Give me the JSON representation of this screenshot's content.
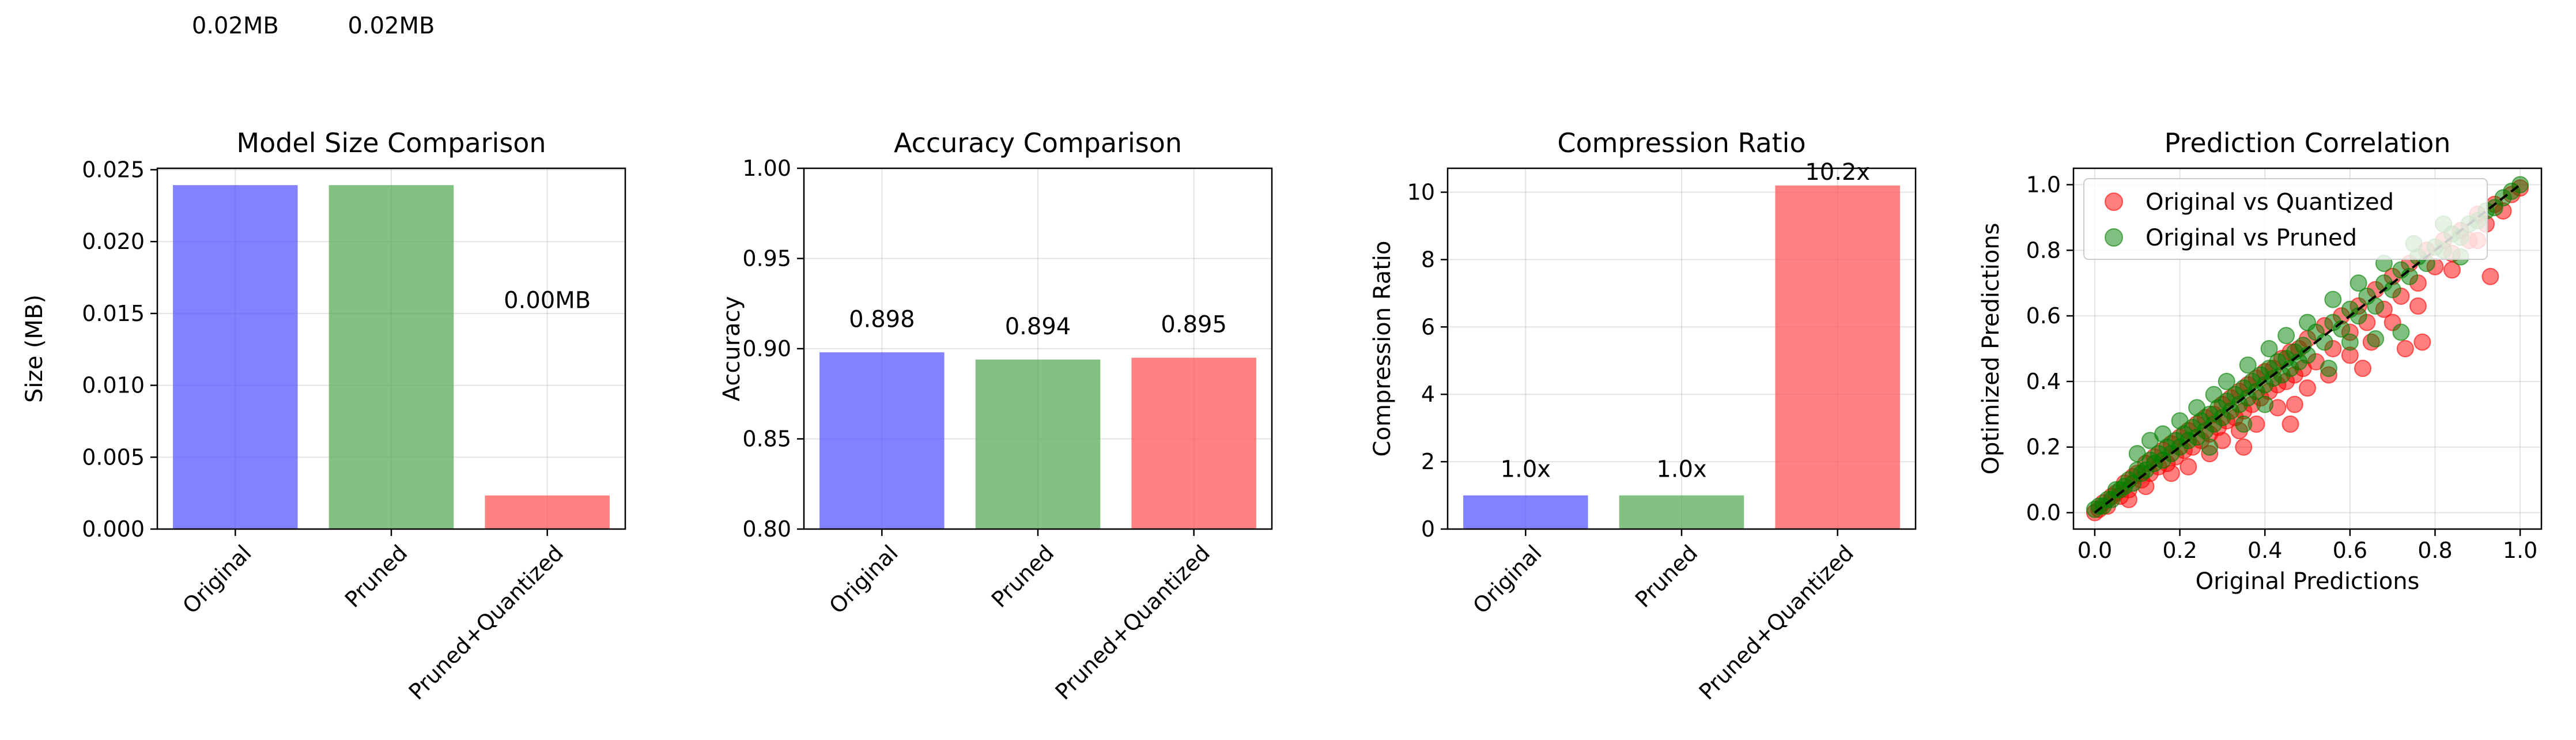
{
  "chart_data": [
    {
      "type": "bar",
      "title": "Model Size Comparison",
      "xlabel": "",
      "ylabel": "Size (MB)",
      "categories": [
        "Original",
        "Pruned",
        "Pruned+Quantized"
      ],
      "values": [
        0.02393,
        0.02393,
        0.00234
      ],
      "data_labels": [
        "0.02MB",
        "0.02MB",
        "0.00MB"
      ],
      "colors": [
        "#4d4dff",
        "#4da64d",
        "#ff4d4d"
      ],
      "ylim": [
        0,
        0.0251
      ],
      "yticks": [
        0.0,
        0.005,
        0.01,
        0.015,
        0.02,
        0.025
      ],
      "ytick_labels": [
        "0.000",
        "0.005",
        "0.010",
        "0.015",
        "0.020",
        "0.025"
      ],
      "grid": true
    },
    {
      "type": "bar",
      "title": "Accuracy Comparison",
      "xlabel": "",
      "ylabel": "Accuracy",
      "categories": [
        "Original",
        "Pruned",
        "Pruned+Quantized"
      ],
      "values": [
        0.898,
        0.894,
        0.895
      ],
      "data_labels": [
        "0.898",
        "0.894",
        "0.895"
      ],
      "colors": [
        "#4d4dff",
        "#4da64d",
        "#ff4d4d"
      ],
      "ylim": [
        0.8,
        1.0
      ],
      "yticks": [
        0.8,
        0.85,
        0.9,
        0.95,
        1.0
      ],
      "ytick_labels": [
        "0.80",
        "0.85",
        "0.90",
        "0.95",
        "1.00"
      ],
      "grid": true
    },
    {
      "type": "bar",
      "title": "Compression Ratio",
      "xlabel": "",
      "ylabel": "Compression Ratio",
      "categories": [
        "Original",
        "Pruned",
        "Pruned+Quantized"
      ],
      "values": [
        1.0,
        1.0,
        10.2
      ],
      "data_labels": [
        "1.0x",
        "1.0x",
        "10.2x"
      ],
      "colors": [
        "#4d4dff",
        "#4da64d",
        "#ff4d4d"
      ],
      "ylim": [
        0,
        10.71
      ],
      "yticks": [
        0,
        2,
        4,
        6,
        8,
        10
      ],
      "ytick_labels": [
        "0",
        "2",
        "4",
        "6",
        "8",
        "10"
      ],
      "grid": true
    },
    {
      "type": "scatter",
      "title": "Prediction Correlation",
      "xlabel": "Original Predictions",
      "ylabel": "Optimized Predictions",
      "xlim": [
        -0.05,
        1.05
      ],
      "ylim": [
        -0.05,
        1.05
      ],
      "xticks": [
        0.0,
        0.2,
        0.4,
        0.6,
        0.8,
        1.0
      ],
      "xtick_labels": [
        "0.0",
        "0.2",
        "0.4",
        "0.6",
        "0.8",
        "1.0"
      ],
      "yticks": [
        0.0,
        0.2,
        0.4,
        0.6,
        0.8,
        1.0
      ],
      "ytick_labels": [
        "0.0",
        "0.2",
        "0.4",
        "0.6",
        "0.8",
        "1.0"
      ],
      "grid": true,
      "legend_position": "upper-left",
      "reference_line": {
        "x": [
          0,
          1
        ],
        "y": [
          0,
          1
        ],
        "style": "dashed",
        "color": "#000000"
      },
      "series": [
        {
          "name": "Original vs Quantized",
          "color": "#ff0000",
          "points": [
            [
              0.0,
              0.0
            ],
            [
              0.01,
              0.01
            ],
            [
              0.02,
              0.03
            ],
            [
              0.03,
              0.02
            ],
            [
              0.04,
              0.05
            ],
            [
              0.05,
              0.06
            ],
            [
              0.06,
              0.05
            ],
            [
              0.07,
              0.09
            ],
            [
              0.08,
              0.07
            ],
            [
              0.09,
              0.11
            ],
            [
              0.1,
              0.12
            ],
            [
              0.11,
              0.1
            ],
            [
              0.12,
              0.15
            ],
            [
              0.13,
              0.12
            ],
            [
              0.14,
              0.17
            ],
            [
              0.15,
              0.14
            ],
            [
              0.16,
              0.19
            ],
            [
              0.17,
              0.15
            ],
            [
              0.18,
              0.21
            ],
            [
              0.19,
              0.17
            ],
            [
              0.2,
              0.23
            ],
            [
              0.21,
              0.19
            ],
            [
              0.22,
              0.25
            ],
            [
              0.23,
              0.2
            ],
            [
              0.24,
              0.27
            ],
            [
              0.25,
              0.22
            ],
            [
              0.26,
              0.29
            ],
            [
              0.27,
              0.24
            ],
            [
              0.28,
              0.3
            ],
            [
              0.29,
              0.26
            ],
            [
              0.3,
              0.33
            ],
            [
              0.31,
              0.28
            ],
            [
              0.32,
              0.35
            ],
            [
              0.33,
              0.29
            ],
            [
              0.34,
              0.37
            ],
            [
              0.35,
              0.31
            ],
            [
              0.36,
              0.39
            ],
            [
              0.37,
              0.33
            ],
            [
              0.38,
              0.41
            ],
            [
              0.39,
              0.35
            ],
            [
              0.4,
              0.43
            ],
            [
              0.41,
              0.37
            ],
            [
              0.42,
              0.44
            ],
            [
              0.43,
              0.39
            ],
            [
              0.44,
              0.47
            ],
            [
              0.45,
              0.4
            ],
            [
              0.46,
              0.49
            ],
            [
              0.47,
              0.42
            ],
            [
              0.48,
              0.5
            ],
            [
              0.49,
              0.44
            ],
            [
              0.5,
              0.53
            ],
            [
              0.52,
              0.46
            ],
            [
              0.54,
              0.57
            ],
            [
              0.56,
              0.5
            ],
            [
              0.58,
              0.6
            ],
            [
              0.6,
              0.55
            ],
            [
              0.62,
              0.63
            ],
            [
              0.64,
              0.58
            ],
            [
              0.66,
              0.68
            ],
            [
              0.68,
              0.62
            ],
            [
              0.7,
              0.72
            ],
            [
              0.72,
              0.66
            ],
            [
              0.74,
              0.76
            ],
            [
              0.76,
              0.7
            ],
            [
              0.78,
              0.8
            ],
            [
              0.8,
              0.75
            ],
            [
              0.82,
              0.83
            ],
            [
              0.84,
              0.79
            ],
            [
              0.86,
              0.86
            ],
            [
              0.88,
              0.83
            ],
            [
              0.9,
              0.91
            ],
            [
              0.92,
              0.88
            ],
            [
              0.94,
              0.94
            ],
            [
              0.96,
              0.92
            ],
            [
              0.98,
              0.97
            ],
            [
              1.0,
              0.99
            ],
            [
              0.08,
              0.04
            ],
            [
              0.12,
              0.08
            ],
            [
              0.18,
              0.12
            ],
            [
              0.22,
              0.14
            ],
            [
              0.27,
              0.18
            ],
            [
              0.3,
              0.22
            ],
            [
              0.34,
              0.25
            ],
            [
              0.38,
              0.27
            ],
            [
              0.43,
              0.32
            ],
            [
              0.47,
              0.33
            ],
            [
              0.5,
              0.38
            ],
            [
              0.55,
              0.42
            ],
            [
              0.6,
              0.48
            ],
            [
              0.65,
              0.52
            ],
            [
              0.7,
              0.58
            ],
            [
              0.76,
              0.63
            ],
            [
              0.84,
              0.74
            ],
            [
              0.9,
              0.83
            ],
            [
              0.93,
              0.72
            ],
            [
              0.77,
              0.52
            ],
            [
              0.73,
              0.5
            ],
            [
              0.63,
              0.44
            ],
            [
              0.46,
              0.27
            ],
            [
              0.35,
              0.2
            ]
          ]
        },
        {
          "name": "Original vs Pruned",
          "color": "#008000",
          "points": [
            [
              0.0,
              0.01
            ],
            [
              0.01,
              0.02
            ],
            [
              0.02,
              0.02
            ],
            [
              0.03,
              0.04
            ],
            [
              0.04,
              0.04
            ],
            [
              0.05,
              0.07
            ],
            [
              0.06,
              0.07
            ],
            [
              0.07,
              0.08
            ],
            [
              0.08,
              0.1
            ],
            [
              0.09,
              0.09
            ],
            [
              0.1,
              0.13
            ],
            [
              0.11,
              0.12
            ],
            [
              0.12,
              0.13
            ],
            [
              0.13,
              0.16
            ],
            [
              0.14,
              0.15
            ],
            [
              0.15,
              0.18
            ],
            [
              0.16,
              0.16
            ],
            [
              0.17,
              0.2
            ],
            [
              0.18,
              0.18
            ],
            [
              0.19,
              0.22
            ],
            [
              0.2,
              0.2
            ],
            [
              0.21,
              0.24
            ],
            [
              0.22,
              0.22
            ],
            [
              0.23,
              0.26
            ],
            [
              0.24,
              0.23
            ],
            [
              0.25,
              0.28
            ],
            [
              0.26,
              0.25
            ],
            [
              0.27,
              0.3
            ],
            [
              0.28,
              0.27
            ],
            [
              0.29,
              0.32
            ],
            [
              0.3,
              0.29
            ],
            [
              0.31,
              0.34
            ],
            [
              0.32,
              0.31
            ],
            [
              0.33,
              0.36
            ],
            [
              0.34,
              0.33
            ],
            [
              0.35,
              0.38
            ],
            [
              0.36,
              0.35
            ],
            [
              0.37,
              0.4
            ],
            [
              0.38,
              0.37
            ],
            [
              0.39,
              0.42
            ],
            [
              0.4,
              0.39
            ],
            [
              0.41,
              0.44
            ],
            [
              0.42,
              0.41
            ],
            [
              0.43,
              0.46
            ],
            [
              0.44,
              0.42
            ],
            [
              0.45,
              0.47
            ],
            [
              0.46,
              0.44
            ],
            [
              0.47,
              0.49
            ],
            [
              0.48,
              0.46
            ],
            [
              0.49,
              0.51
            ],
            [
              0.5,
              0.48
            ],
            [
              0.52,
              0.55
            ],
            [
              0.54,
              0.52
            ],
            [
              0.56,
              0.58
            ],
            [
              0.58,
              0.56
            ],
            [
              0.6,
              0.62
            ],
            [
              0.62,
              0.6
            ],
            [
              0.64,
              0.66
            ],
            [
              0.66,
              0.63
            ],
            [
              0.68,
              0.7
            ],
            [
              0.7,
              0.68
            ],
            [
              0.72,
              0.74
            ],
            [
              0.74,
              0.72
            ],
            [
              0.76,
              0.78
            ],
            [
              0.78,
              0.76
            ],
            [
              0.8,
              0.81
            ],
            [
              0.82,
              0.8
            ],
            [
              0.84,
              0.85
            ],
            [
              0.86,
              0.84
            ],
            [
              0.88,
              0.88
            ],
            [
              0.9,
              0.89
            ],
            [
              0.92,
              0.92
            ],
            [
              0.94,
              0.93
            ],
            [
              0.96,
              0.96
            ],
            [
              0.98,
              0.98
            ],
            [
              1.0,
              1.0
            ],
            [
              0.1,
              0.18
            ],
            [
              0.13,
              0.22
            ],
            [
              0.16,
              0.24
            ],
            [
              0.2,
              0.28
            ],
            [
              0.24,
              0.32
            ],
            [
              0.28,
              0.36
            ],
            [
              0.31,
              0.4
            ],
            [
              0.36,
              0.45
            ],
            [
              0.41,
              0.5
            ],
            [
              0.45,
              0.54
            ],
            [
              0.5,
              0.58
            ],
            [
              0.56,
              0.65
            ],
            [
              0.62,
              0.7
            ],
            [
              0.55,
              0.44
            ],
            [
              0.6,
              0.52
            ],
            [
              0.68,
              0.76
            ],
            [
              0.75,
              0.82
            ],
            [
              0.82,
              0.88
            ],
            [
              0.66,
              0.53
            ],
            [
              0.72,
              0.55
            ],
            [
              0.35,
              0.27
            ],
            [
              0.4,
              0.33
            ],
            [
              0.27,
              0.2
            ],
            [
              0.86,
              0.78
            ]
          ]
        }
      ]
    }
  ]
}
